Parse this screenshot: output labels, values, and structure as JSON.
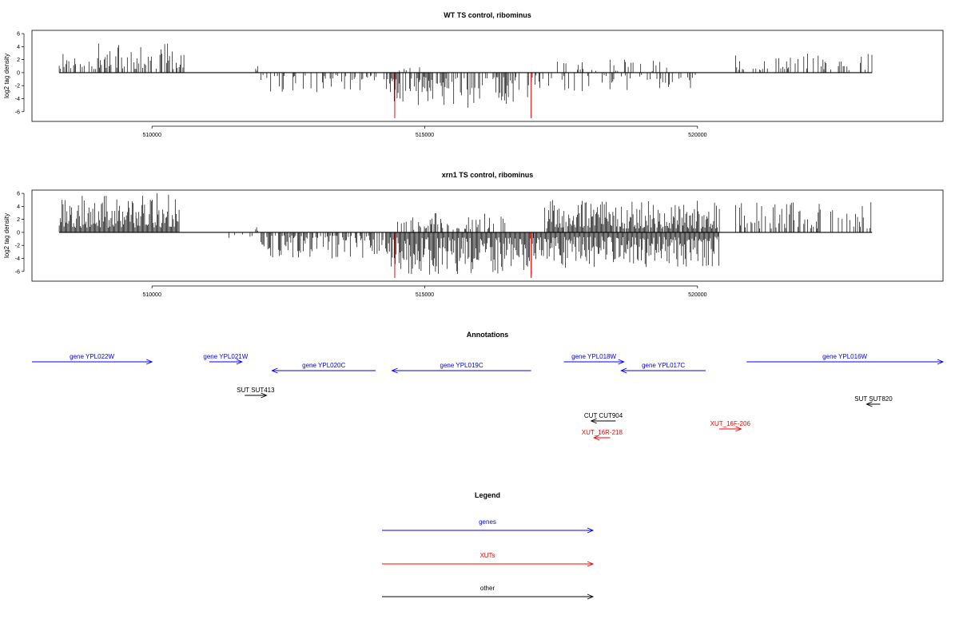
{
  "colors": {
    "genes": "#0000ff",
    "XUTs": "#ff0000",
    "other": "#000000",
    "highlight": "#ff0000",
    "bars": "#000000"
  },
  "chart_data": [
    {
      "type": "bar",
      "title": "WT TS control, ribominus",
      "ylabel": "log2 tag density",
      "xlim": [
        507800,
        524500
      ],
      "ylim": [
        -7.5,
        6.5
      ],
      "x_ticks": [
        510000,
        515000,
        520000
      ],
      "y_ticks": [
        6,
        4,
        2,
        0,
        -2,
        -4,
        -6
      ],
      "x_tick_labels": [
        "510000",
        "515000",
        "520000"
      ],
      "y_tick_labels": [
        "6",
        "4",
        "2",
        "0",
        "-2",
        "-4",
        "-6"
      ],
      "baseline": [
        508300,
        523200
      ],
      "highlighted": [
        {
          "x": 514450,
          "value": -7.0
        },
        {
          "x": 516950,
          "value": -7.0
        }
      ],
      "series": [
        {
          "strand": "+",
          "range": [
            508300,
            510600
          ],
          "density": 0.5,
          "max": 4.5,
          "seed": 11
        },
        {
          "strand": "+",
          "range": [
            511900,
            511950
          ],
          "density": 1.0,
          "max": 2.0,
          "seed": 12
        },
        {
          "strand": "-",
          "range": [
            512000,
            514300
          ],
          "density": 0.3,
          "max": 3.0,
          "seed": 13
        },
        {
          "strand": "-",
          "range": [
            514300,
            516900
          ],
          "density": 0.55,
          "max": 5.5,
          "seed": 14
        },
        {
          "strand": "+",
          "range": [
            514500,
            515000
          ],
          "density": 0.15,
          "max": 1.6,
          "seed": 15
        },
        {
          "strand": "-",
          "range": [
            516900,
            520000
          ],
          "density": 0.25,
          "max": 3.0,
          "seed": 16
        },
        {
          "strand": "+",
          "range": [
            517200,
            519500
          ],
          "density": 0.15,
          "max": 2.0,
          "seed": 17
        },
        {
          "strand": "+",
          "range": [
            520700,
            523200
          ],
          "density": 0.3,
          "max": 3.0,
          "seed": 18
        }
      ]
    },
    {
      "type": "bar",
      "title": "xrn1 TS control, ribominus",
      "ylabel": "log2 tag density",
      "xlim": [
        507800,
        524500
      ],
      "ylim": [
        -7.5,
        6.5
      ],
      "x_ticks": [
        510000,
        515000,
        520000
      ],
      "y_ticks": [
        6,
        4,
        2,
        0,
        -2,
        -4,
        -6
      ],
      "x_tick_labels": [
        "510000",
        "515000",
        "520000"
      ],
      "y_tick_labels": [
        "6",
        "4",
        "2",
        "0",
        "-2",
        "-4",
        "-6"
      ],
      "baseline": [
        508300,
        523200
      ],
      "highlighted": [
        {
          "x": 514450,
          "value": -7.0
        },
        {
          "x": 516950,
          "value": -7.0
        }
      ],
      "series": [
        {
          "strand": "+",
          "range": [
            508300,
            510500
          ],
          "density": 1.0,
          "max": 6.0,
          "seed": 21
        },
        {
          "strand": "+",
          "range": [
            511900,
            511950
          ],
          "density": 1.0,
          "max": 2.0,
          "seed": 22
        },
        {
          "strand": "-",
          "range": [
            511200,
            511900
          ],
          "density": 0.1,
          "max": 1.2,
          "seed": 23
        },
        {
          "strand": "-",
          "range": [
            512000,
            514300
          ],
          "density": 0.7,
          "max": 4.0,
          "seed": 24
        },
        {
          "strand": "-",
          "range": [
            514300,
            517000
          ],
          "density": 1.0,
          "max": 6.5,
          "seed": 25
        },
        {
          "strand": "+",
          "range": [
            514500,
            516500
          ],
          "density": 0.35,
          "max": 3.0,
          "seed": 26
        },
        {
          "strand": "-",
          "range": [
            517000,
            520400
          ],
          "density": 1.0,
          "max": 5.5,
          "seed": 27
        },
        {
          "strand": "+",
          "range": [
            517200,
            520400
          ],
          "density": 0.95,
          "max": 5.0,
          "seed": 28
        },
        {
          "strand": "+",
          "range": [
            520700,
            523200
          ],
          "density": 0.5,
          "max": 4.8,
          "seed": 29
        }
      ]
    }
  ],
  "annotations": {
    "title": "Annotations",
    "xlim": [
      507800,
      524500
    ],
    "features": [
      {
        "label": "gene YPL022W",
        "type": "genes",
        "start": 507800,
        "end": 510000,
        "strand": "+",
        "row": 0
      },
      {
        "label": "gene YPL021W",
        "type": "genes",
        "start": 511050,
        "end": 511650,
        "strand": "+",
        "row": 0
      },
      {
        "label": "gene YPL020C",
        "type": "genes",
        "start": 512200,
        "end": 514100,
        "strand": "-",
        "row": 1
      },
      {
        "label": "gene YPL019C",
        "type": "genes",
        "start": 514400,
        "end": 516950,
        "strand": "-",
        "row": 1
      },
      {
        "label": "gene YPL018W",
        "type": "genes",
        "start": 517550,
        "end": 518650,
        "strand": "+",
        "row": 0
      },
      {
        "label": "gene YPL017C",
        "type": "genes",
        "start": 518600,
        "end": 520150,
        "strand": "-",
        "row": 1
      },
      {
        "label": "gene YPL016W",
        "type": "genes",
        "start": 520900,
        "end": 524500,
        "strand": "+",
        "row": 0
      },
      {
        "label": "SUT SUT413",
        "type": "other",
        "start": 511700,
        "end": 512100,
        "strand": "+",
        "row": 2
      },
      {
        "label": "SUT SUT820",
        "type": "other",
        "start": 523100,
        "end": 523350,
        "strand": "-",
        "row": 3
      },
      {
        "label": "CUT CUT904",
        "type": "other",
        "start": 518050,
        "end": 518500,
        "strand": "-",
        "row": 4
      },
      {
        "label": "XUT_16R-218",
        "type": "XUTs",
        "start": 518100,
        "end": 518400,
        "strand": "-",
        "row": 5
      },
      {
        "label": "XUT_16F-206",
        "type": "XUTs",
        "start": 520400,
        "end": 520800,
        "strand": "+",
        "row": 6
      }
    ]
  },
  "legend": {
    "title": "Legend",
    "items": [
      {
        "label": "genes",
        "type": "genes"
      },
      {
        "label": "XUTs",
        "type": "XUTs"
      },
      {
        "label": "other",
        "type": "other"
      }
    ]
  }
}
